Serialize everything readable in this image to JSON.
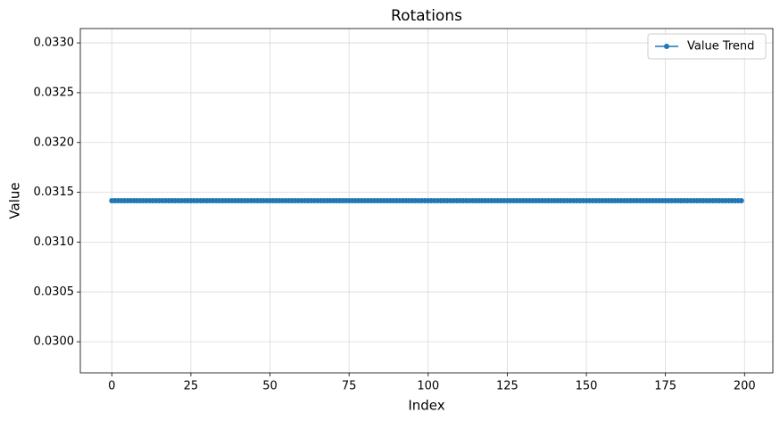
{
  "chart_data": {
    "type": "line",
    "title": "Rotations",
    "xlabel": "Index",
    "ylabel": "Value",
    "series": [
      {
        "name": "Value Trend",
        "color": "#1f77b4",
        "values": [
          0.0314159,
          0.0314159,
          0.0314159,
          0.0314159,
          0.0314159,
          0.0314159,
          0.0314159,
          0.0314159,
          0.0314159,
          0.0314159,
          0.0314159,
          0.0314159,
          0.0314159,
          0.0314159,
          0.0314159,
          0.0314159,
          0.0314159,
          0.0314159,
          0.0314159,
          0.0314159,
          0.0314159,
          0.0314159,
          0.0314159,
          0.0314159,
          0.0314159,
          0.0314159,
          0.0314159,
          0.0314159,
          0.0314159,
          0.0314159,
          0.0314159,
          0.0314159,
          0.0314159,
          0.0314159,
          0.0314159,
          0.0314159,
          0.0314159,
          0.0314159,
          0.0314159,
          0.0314159,
          0.0314159,
          0.0314159,
          0.0314159,
          0.0314159,
          0.0314159,
          0.0314159,
          0.0314159,
          0.0314159,
          0.0314159,
          0.0314159,
          0.0314159,
          0.0314159,
          0.0314159,
          0.0314159,
          0.0314159,
          0.0314159,
          0.0314159,
          0.0314159,
          0.0314159,
          0.0314159,
          0.0314159,
          0.0314159,
          0.0314159,
          0.0314159,
          0.0314159,
          0.0314159,
          0.0314159,
          0.0314159,
          0.0314159,
          0.0314159,
          0.0314159,
          0.0314159,
          0.0314159,
          0.0314159,
          0.0314159,
          0.0314159,
          0.0314159,
          0.0314159,
          0.0314159,
          0.0314159,
          0.0314159,
          0.0314159,
          0.0314159,
          0.0314159,
          0.0314159,
          0.0314159,
          0.0314159,
          0.0314159,
          0.0314159,
          0.0314159,
          0.0314159,
          0.0314159,
          0.0314159,
          0.0314159,
          0.0314159,
          0.0314159,
          0.0314159,
          0.0314159,
          0.0314159,
          0.0314159,
          0.0314159,
          0.0314159,
          0.0314159,
          0.0314159,
          0.0314159,
          0.0314159,
          0.0314159,
          0.0314159,
          0.0314159,
          0.0314159,
          0.0314159,
          0.0314159,
          0.0314159,
          0.0314159,
          0.0314159,
          0.0314159,
          0.0314159,
          0.0314159,
          0.0314159,
          0.0314159,
          0.0314159,
          0.0314159,
          0.0314159,
          0.0314159,
          0.0314159,
          0.0314159,
          0.0314159,
          0.0314159,
          0.0314159,
          0.0314159,
          0.0314159,
          0.0314159,
          0.0314159,
          0.0314159,
          0.0314159,
          0.0314159,
          0.0314159,
          0.0314159,
          0.0314159,
          0.0314159,
          0.0314159,
          0.0314159,
          0.0314159,
          0.0314159,
          0.0314159,
          0.0314159,
          0.0314159,
          0.0314159,
          0.0314159,
          0.0314159,
          0.0314159,
          0.0314159,
          0.0314159,
          0.0314159,
          0.0314159,
          0.0314159,
          0.0314159,
          0.0314159,
          0.0314159,
          0.0314159,
          0.0314159,
          0.0314159,
          0.0314159,
          0.0314159,
          0.0314159,
          0.0314159,
          0.0314159,
          0.0314159,
          0.0314159,
          0.0314159,
          0.0314159,
          0.0314159,
          0.0314159,
          0.0314159,
          0.0314159,
          0.0314159,
          0.0314159,
          0.0314159,
          0.0314159,
          0.0314159,
          0.0314159,
          0.0314159,
          0.0314159,
          0.0314159,
          0.0314159,
          0.0314159,
          0.0314159,
          0.0314159,
          0.0314159,
          0.0314159,
          0.0314159,
          0.0314159,
          0.0314159,
          0.0314159,
          0.0314159,
          0.0314159,
          0.0314159,
          0.0314159,
          0.0314159,
          0.0314159
        ]
      }
    ],
    "xlim": [
      -9.95,
      208.95
    ],
    "xticks": [
      0,
      25,
      50,
      75,
      100,
      125,
      150,
      175,
      200
    ],
    "ylim": [
      0.029688,
      0.033144
    ],
    "yticks": [
      {
        "value": 0.03,
        "label": "0.0300"
      },
      {
        "value": 0.0305,
        "label": "0.0305"
      },
      {
        "value": 0.031,
        "label": "0.0310"
      },
      {
        "value": 0.0315,
        "label": "0.0315"
      },
      {
        "value": 0.032,
        "label": "0.0320"
      },
      {
        "value": 0.0325,
        "label": "0.0325"
      },
      {
        "value": 0.033,
        "label": "0.0330"
      }
    ],
    "grid": true,
    "legend": "upper right"
  }
}
